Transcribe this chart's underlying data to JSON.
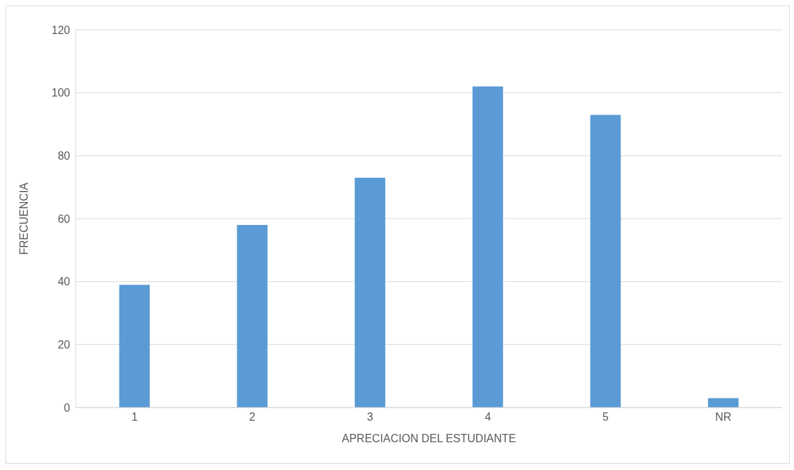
{
  "chart_data": {
    "type": "bar",
    "xlabel": "APRECIACION DEL ESTUDIANTE",
    "ylabel": "FRECUENCIA",
    "categories": [
      "1",
      "2",
      "3",
      "4",
      "5",
      "NR"
    ],
    "values": [
      39,
      58,
      73,
      102,
      93,
      3
    ],
    "color": "#5b9bd5",
    "ylim": [
      0,
      120
    ],
    "yticks": [
      0,
      20,
      40,
      60,
      80,
      100,
      120
    ],
    "grid": "y"
  }
}
